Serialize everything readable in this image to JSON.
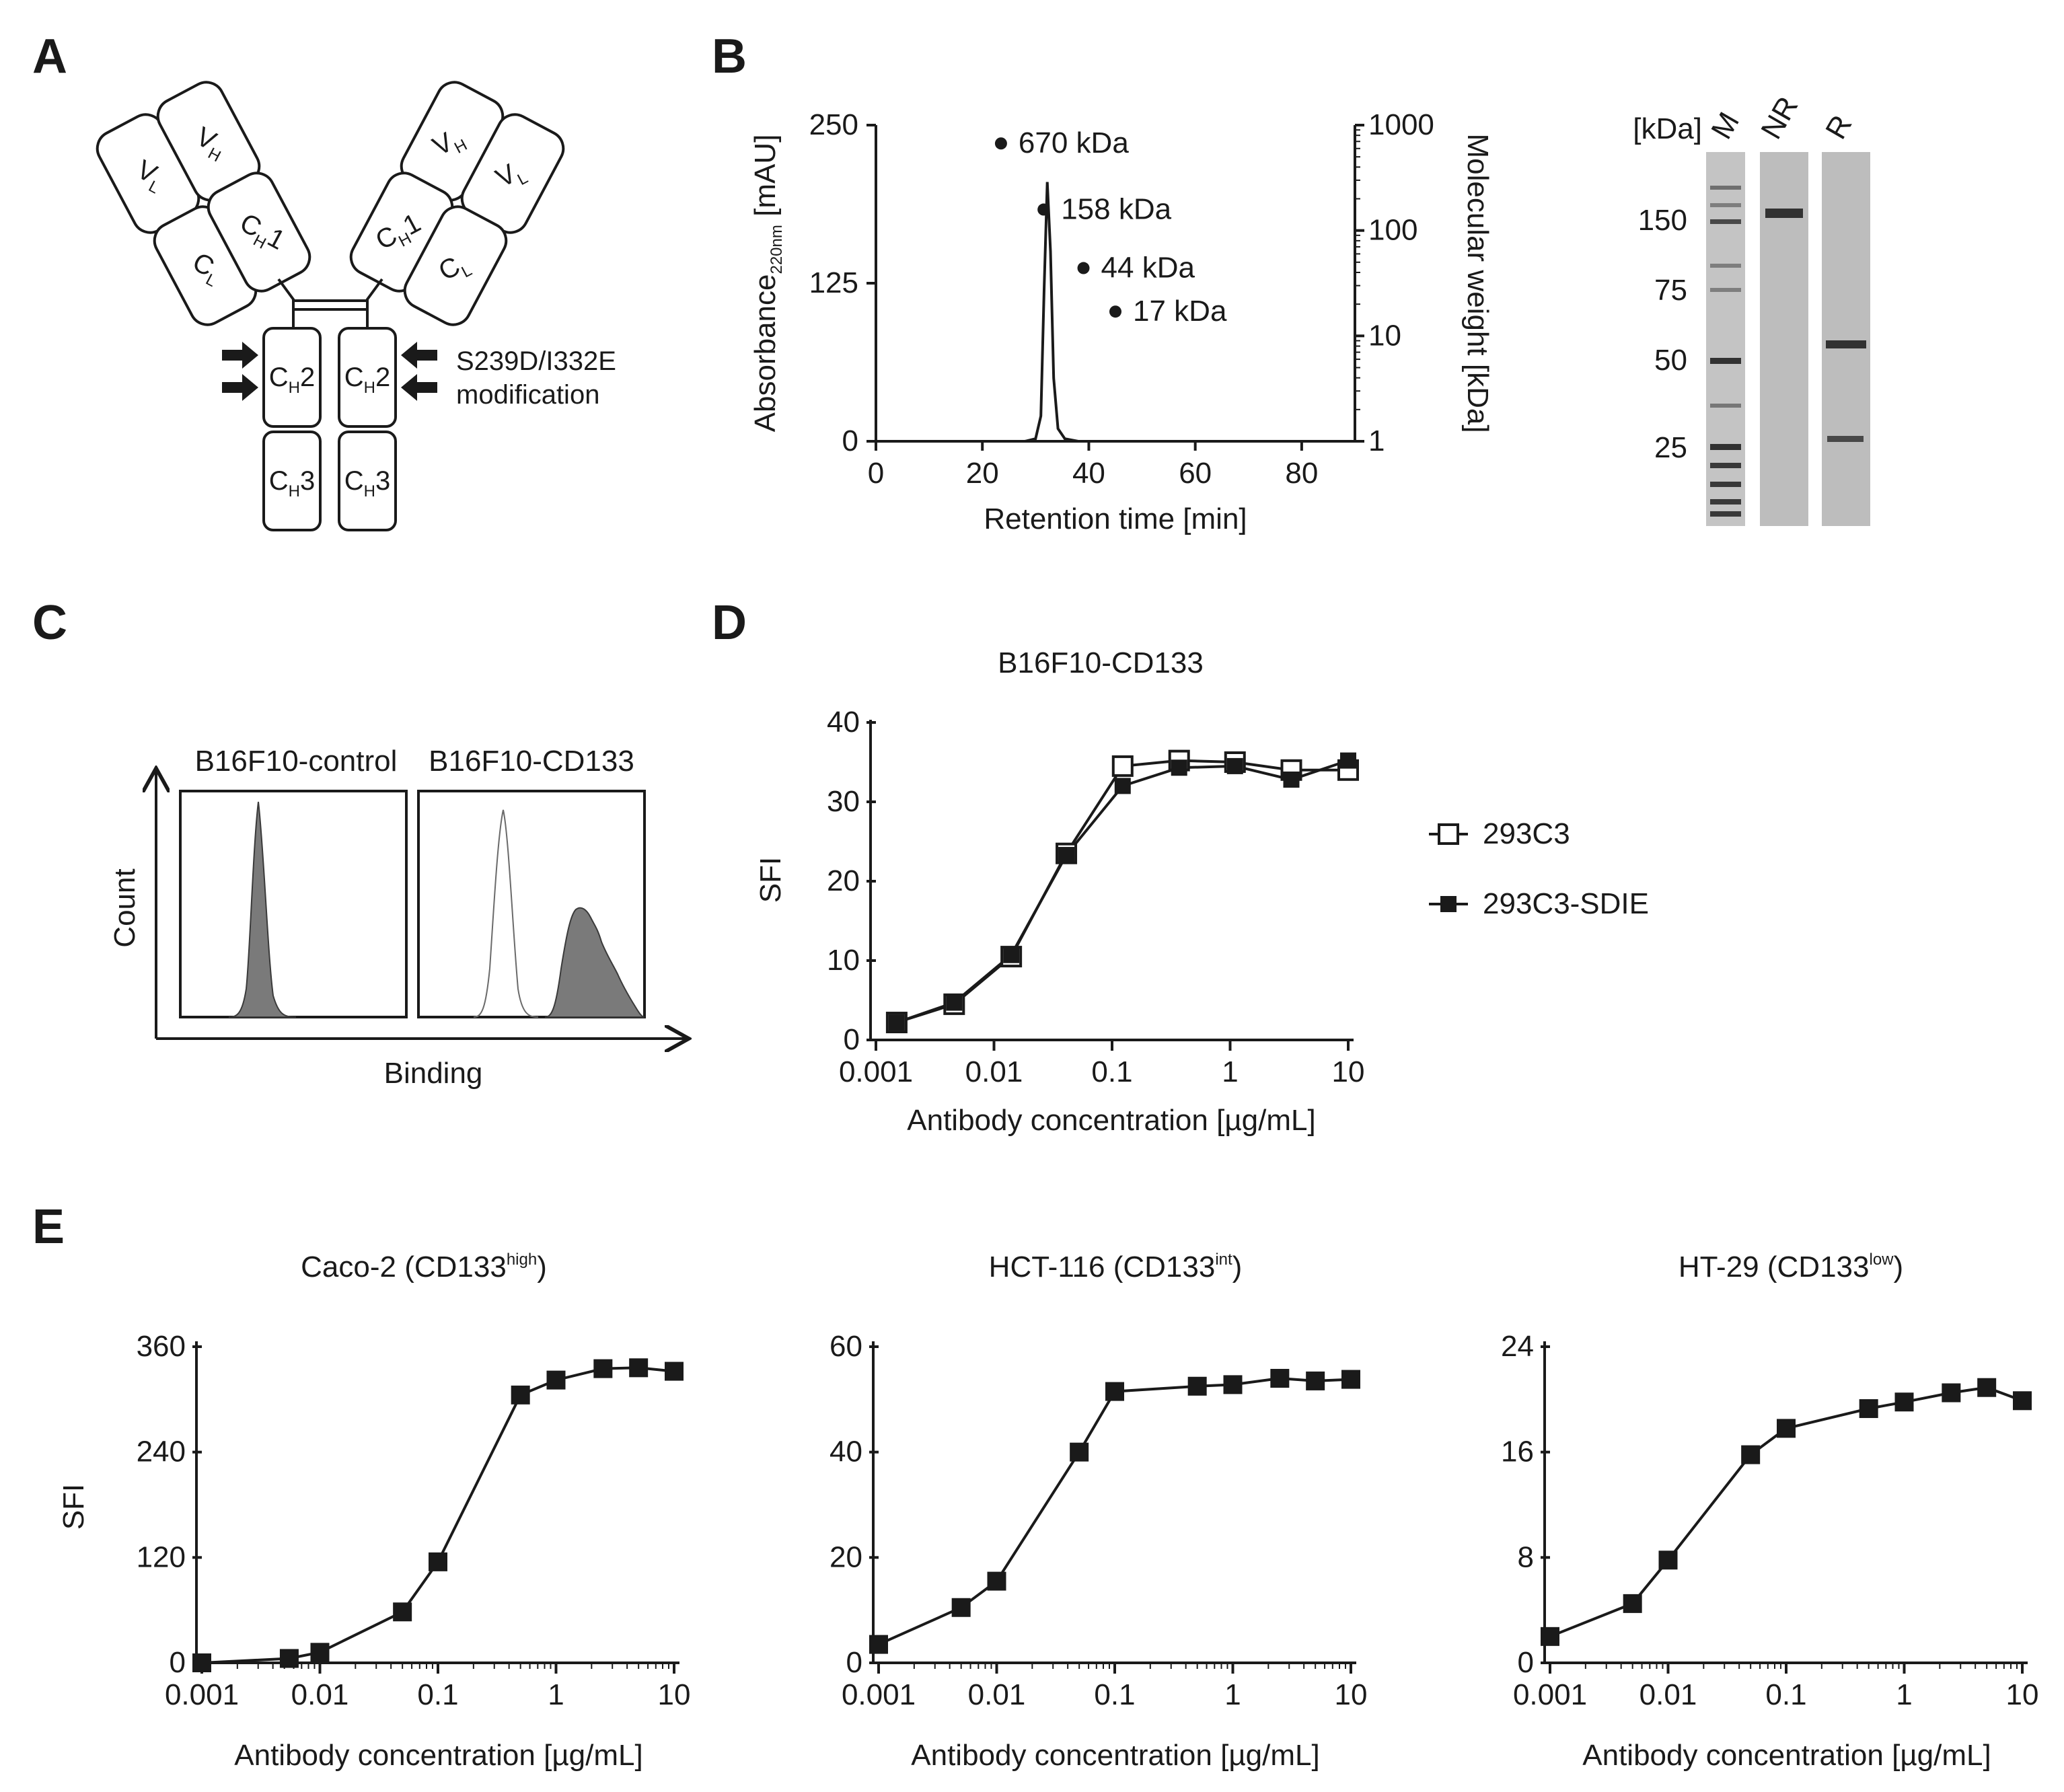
{
  "panels": {
    "A": "A",
    "B": "B",
    "C": "C",
    "D": "D",
    "E": "E"
  },
  "panelA": {
    "domains": {
      "vl": "V",
      "vh": "V",
      "cl": "C",
      "ch1": "C",
      "ch2": "C",
      "ch3": "C"
    },
    "subs": {
      "L": "L",
      "H": "H"
    },
    "suffix": {
      "one": "1",
      "two": "2",
      "three": "3"
    },
    "modification_line1": "S239D/I332E",
    "modification_line2": "modification"
  },
  "panelB_gel": {
    "unit_label": "[kDa]",
    "lanes": [
      "M",
      "NR",
      "R"
    ],
    "markers": [
      "150",
      "75",
      "50",
      "25"
    ],
    "colors": {
      "bg": "#bdbdbd",
      "band": "#1c1c1c"
    }
  },
  "panelC": {
    "titles": [
      "B16F10-control",
      "B16F10-CD133"
    ],
    "ylabel": "Count",
    "xlabel": "Binding",
    "colors": {
      "fill": "#7a7a7a",
      "empty": "#ffffff"
    }
  },
  "chart_data": [
    {
      "id": "B-sec",
      "type": "line",
      "title": "",
      "xlabel": "Retention time [min]",
      "ylabel": "Absorbance",
      "ylabel_sub": "220nm",
      "ylabel_unit": " [mAU]",
      "y2label": "Molecular weight [kDa]",
      "xlim": [
        0,
        90
      ],
      "ylim": [
        0,
        250
      ],
      "y2lim": [
        1,
        1000
      ],
      "y2_scale": "log",
      "xticks": [
        "0",
        "20",
        "40",
        "60",
        "80"
      ],
      "yticks": [
        "0",
        "125",
        "250"
      ],
      "y2ticks": [
        "1",
        "10",
        "100",
        "1000"
      ],
      "series": [
        {
          "x": [
            0,
            28,
            30,
            31,
            31.6,
            32.2,
            32.8,
            33.4,
            34.2,
            35.5,
            38,
            90
          ],
          "y": [
            0,
            0,
            2,
            20,
            120,
            205,
            150,
            50,
            10,
            2,
            0,
            0
          ]
        }
      ],
      "standards": [
        {
          "label": "670 kDa",
          "x": 23.5,
          "mw": 670
        },
        {
          "label": "158 kDa",
          "x": 31.5,
          "mw": 158
        },
        {
          "label": "44 kDa",
          "x": 39,
          "mw": 44
        },
        {
          "label": "17 kDa",
          "x": 45,
          "mw": 17
        }
      ]
    },
    {
      "id": "D",
      "type": "line",
      "title": "B16F10-CD133",
      "xlabel": "Antibody concentration [µg/mL]",
      "ylabel": "SFI",
      "x_scale": "log",
      "xlim": [
        0.001,
        10
      ],
      "ylim": [
        0,
        40
      ],
      "xticks": [
        "0.001",
        "0.01",
        "0.1",
        "1",
        "10"
      ],
      "yticks": [
        "0",
        "10",
        "20",
        "30",
        "40"
      ],
      "series": [
        {
          "name": "293C3",
          "marker": "open-square",
          "x": [
            0.0015,
            0.0046,
            0.014,
            0.041,
            0.123,
            0.37,
            1.1,
            3.3,
            10
          ],
          "y": [
            2.2,
            4.5,
            10.5,
            23.5,
            34.5,
            35.2,
            35.0,
            34.0,
            34.0
          ]
        },
        {
          "name": "293C3-SDIE",
          "marker": "filled-square",
          "x": [
            0.0015,
            0.0046,
            0.014,
            0.041,
            0.123,
            0.37,
            1.1,
            3.3,
            10
          ],
          "y": [
            2.2,
            4.7,
            10.7,
            23.3,
            32.0,
            34.3,
            34.5,
            32.8,
            35.2
          ]
        }
      ]
    },
    {
      "id": "E1",
      "type": "line",
      "title": "Caco-2 (CD133",
      "title_sup": "high",
      "title_end": ")",
      "xlabel": "Antibody concentration [µg/mL]",
      "ylabel": "SFI",
      "x_scale": "log",
      "xlim": [
        0.001,
        10
      ],
      "ylim": [
        0,
        360
      ],
      "xticks": [
        "0.001",
        "0.01",
        "0.1",
        "1",
        "10"
      ],
      "yticks": [
        "0",
        "120",
        "240",
        "360"
      ],
      "series": [
        {
          "x": [
            0.001,
            0.0055,
            0.01,
            0.05,
            0.1,
            0.5,
            1,
            2.5,
            5,
            10
          ],
          "y": [
            0,
            5,
            12,
            58,
            115,
            305,
            322,
            335,
            336,
            332
          ]
        }
      ]
    },
    {
      "id": "E2",
      "type": "line",
      "title": "HCT-116 (CD133",
      "title_sup": "int",
      "title_end": ")",
      "xlabel": "Antibody concentration [µg/mL]",
      "ylabel": "",
      "x_scale": "log",
      "xlim": [
        0.001,
        10
      ],
      "ylim": [
        0,
        60
      ],
      "xticks": [
        "0.001",
        "0.01",
        "0.1",
        "1",
        "10"
      ],
      "yticks": [
        "0",
        "20",
        "40",
        "60"
      ],
      "series": [
        {
          "x": [
            0.001,
            0.005,
            0.01,
            0.05,
            0.1,
            0.5,
            1,
            2.5,
            5,
            10
          ],
          "y": [
            3.5,
            10.5,
            15.5,
            40,
            51.5,
            52.5,
            52.8,
            54,
            53.5,
            53.8
          ]
        }
      ]
    },
    {
      "id": "E3",
      "type": "line",
      "title": "HT-29 (CD133",
      "title_sup": "low",
      "title_end": ")",
      "xlabel": "Antibody concentration [µg/mL]",
      "ylabel": "",
      "x_scale": "log",
      "xlim": [
        0.001,
        10
      ],
      "ylim": [
        0,
        24
      ],
      "xticks": [
        "0.001",
        "0.01",
        "0.1",
        "1",
        "10"
      ],
      "yticks": [
        "0",
        "8",
        "16",
        "24"
      ],
      "series": [
        {
          "x": [
            0.001,
            0.005,
            0.01,
            0.05,
            0.1,
            0.5,
            1,
            2.5,
            5,
            10
          ],
          "y": [
            2,
            4.5,
            7.8,
            15.8,
            17.8,
            19.3,
            19.8,
            20.5,
            20.9,
            19.9
          ]
        }
      ]
    }
  ]
}
